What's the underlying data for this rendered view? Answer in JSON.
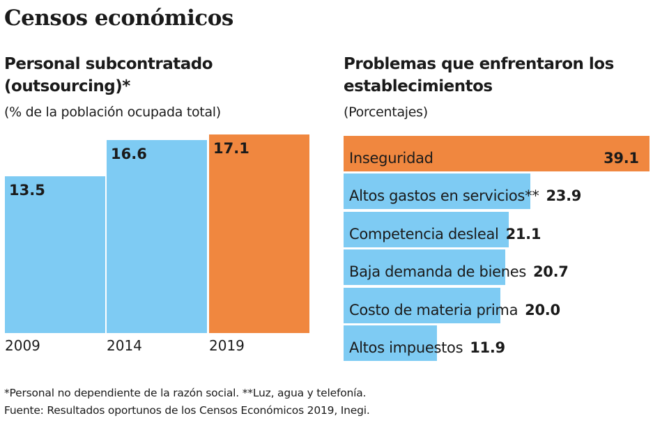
{
  "title": "Censos económicos",
  "colors": {
    "blue": "#7ecbf3",
    "orange": "#f0873f"
  },
  "chart_data": [
    {
      "type": "bar",
      "title": "Personal subcontratado (outsourcing)*",
      "subtitle": "(% de la población ocupada total)",
      "categories": [
        "2009",
        "2014",
        "2019"
      ],
      "values": [
        13.5,
        16.6,
        17.1
      ],
      "value_labels": [
        "13.5",
        "16.6",
        "17.1"
      ],
      "highlight": "2019",
      "ylim": [
        0,
        17.1
      ]
    },
    {
      "type": "bar",
      "orientation": "horizontal",
      "title": "Problemas que enfrentaron los establecimientos",
      "subtitle": "(Porcentajes)",
      "categories": [
        "Inseguridad",
        "Altos gastos en servicios**",
        "Competencia desleal",
        "Baja demanda de bienes",
        "Costo de materia prima",
        "Altos impuestos"
      ],
      "values": [
        39.1,
        23.9,
        21.1,
        20.7,
        20.0,
        11.9
      ],
      "value_labels": [
        "39.1",
        "23.9",
        "21.1",
        "20.7",
        "20.0",
        "11.9"
      ],
      "highlight": "Inseguridad",
      "xlim": [
        0,
        39.1
      ]
    }
  ],
  "notes": [
    "*Personal no dependiente de la razón social. **Luz, agua y telefonía.",
    "Fuente: Resultados oportunos de los Censos Económicos 2019, Inegi."
  ]
}
